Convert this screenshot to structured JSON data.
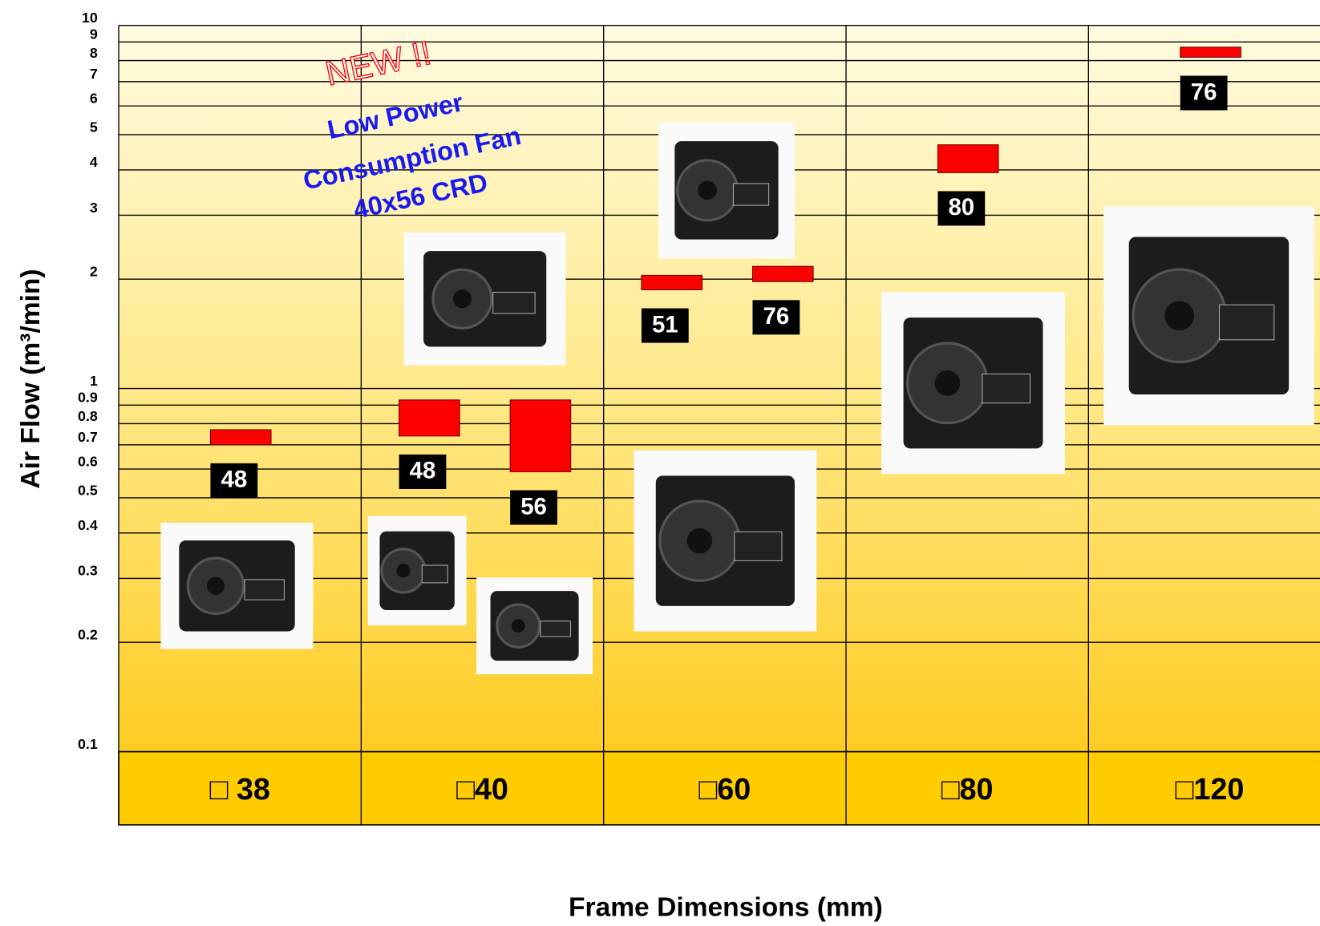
{
  "chart_data": {
    "type": "range-bar",
    "y_axis_label": "Air Flow (m³/min)",
    "x_axis_label": "Frame Dimensions (mm)",
    "annotations": [
      "NEW !!",
      "Low Power",
      "Consumption Fan",
      "40x56 CRD"
    ],
    "log_scale": true,
    "grid": true,
    "ylim": [
      0.1,
      10
    ],
    "yticks": [
      0.1,
      0.2,
      0.3,
      0.4,
      0.5,
      0.6,
      0.7,
      0.8,
      0.9,
      1,
      2,
      3,
      4,
      5,
      6,
      7,
      8,
      9,
      10
    ],
    "color": "#ff0000",
    "groups": [
      {
        "category": "□ 38",
        "bars": [
          {
            "low": 0.7,
            "high": 0.77,
            "label": "48"
          }
        ]
      },
      {
        "category": "□40",
        "bars": [
          {
            "low": 0.74,
            "high": 0.93,
            "label": "48"
          },
          {
            "low": 0.59,
            "high": 0.93,
            "label": "56"
          }
        ]
      },
      {
        "category": "□60",
        "bars": [
          {
            "low": 1.87,
            "high": 2.05,
            "label": "51"
          },
          {
            "low": 1.97,
            "high": 2.17,
            "label": "76"
          }
        ]
      },
      {
        "category": "□80",
        "bars": [
          {
            "low": 3.93,
            "high": 4.69,
            "label": "80"
          }
        ]
      },
      {
        "category": "□120",
        "bars": [
          {
            "low": 8.17,
            "high": 8.71,
            "label": "76"
          }
        ]
      }
    ]
  }
}
